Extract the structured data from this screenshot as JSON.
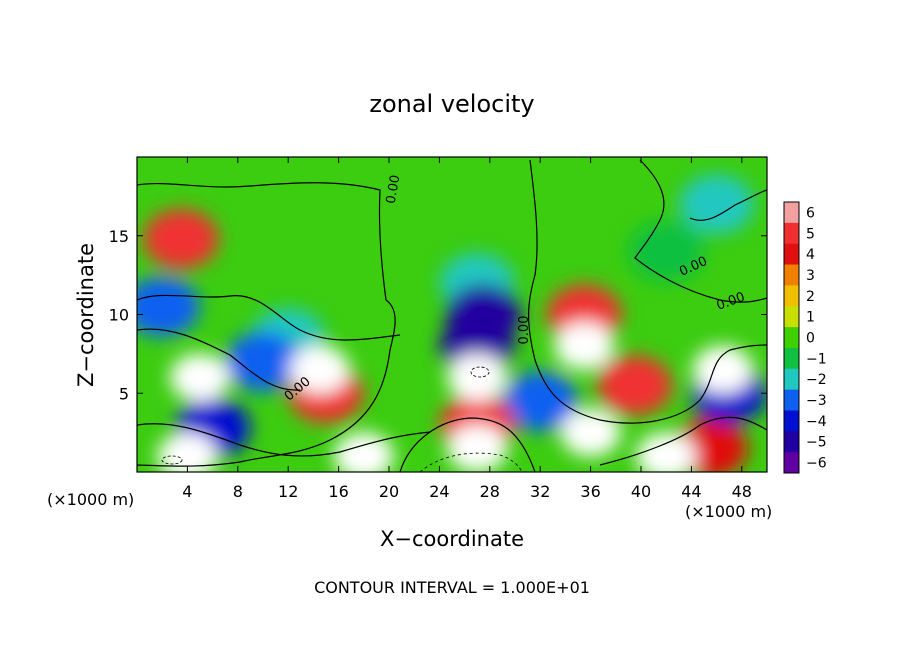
{
  "chart_data": {
    "type": "heatmap",
    "title": "zonal velocity",
    "xlabel": "X−coordinate",
    "ylabel": "Z−coordinate",
    "x_unit_left": "(×1000 m)",
    "x_unit_right": "(×1000 m)",
    "xlim": [
      0,
      50
    ],
    "ylim": [
      0,
      20
    ],
    "x_ticks": [
      4,
      8,
      12,
      16,
      20,
      24,
      28,
      32,
      36,
      40,
      44,
      48
    ],
    "y_ticks": [
      5,
      10,
      15
    ],
    "colorbar": {
      "levels": [
        6,
        5,
        4,
        3,
        2,
        1,
        0,
        -1,
        -2,
        -3,
        -4,
        -5,
        -6
      ],
      "labels": [
        "6",
        "5",
        "4",
        "3",
        "2",
        "1",
        "0",
        "−1",
        "−2",
        "−3",
        "−4",
        "−5",
        "−6"
      ],
      "colors": [
        "#f2a0a0",
        "#f03030",
        "#e01010",
        "#f08000",
        "#f0c000",
        "#c8e000",
        "#40d000",
        "#10c040",
        "#20c8c0",
        "#1060f0",
        "#0010d0",
        "#2000a0",
        "#6000a0"
      ]
    },
    "contour_labels": [
      "0.00",
      "0.00",
      "0.00",
      "0.00",
      "0.00"
    ],
    "annotation": "CONTOUR INTERVAL = 1.000E+01",
    "field": [
      {
        "x": 3.5,
        "z": 14.8,
        "v": 5
      },
      {
        "x": 5,
        "z": 6,
        "v": 7
      },
      {
        "x": 15,
        "z": 5,
        "v": 5
      },
      {
        "x": 14.5,
        "z": 6.5,
        "v": 7
      },
      {
        "x": 27,
        "z": 6,
        "v": 7
      },
      {
        "x": 27,
        "z": 1.5,
        "v": 7
      },
      {
        "x": 27,
        "z": 3,
        "v": 5
      },
      {
        "x": 27,
        "z": 8,
        "v": -5
      },
      {
        "x": 27.5,
        "z": 10,
        "v": -5
      },
      {
        "x": 27,
        "z": 12,
        "v": -2
      },
      {
        "x": 35.5,
        "z": 8,
        "v": 7
      },
      {
        "x": 35.5,
        "z": 10,
        "v": 5
      },
      {
        "x": 39.5,
        "z": 5.5,
        "v": 5
      },
      {
        "x": 36,
        "z": 2.5,
        "v": 7
      },
      {
        "x": 4,
        "z": 1,
        "v": 7
      },
      {
        "x": 6,
        "z": 2.8,
        "v": -4
      },
      {
        "x": 18,
        "z": 1,
        "v": 7
      },
      {
        "x": 46.5,
        "z": 6.5,
        "v": 7
      },
      {
        "x": 45.5,
        "z": 1.5,
        "v": 4
      },
      {
        "x": 47,
        "z": 5,
        "v": -4
      },
      {
        "x": 42,
        "z": 1,
        "v": 7
      },
      {
        "x": 2,
        "z": 10.5,
        "v": -3
      },
      {
        "x": 10,
        "z": 7,
        "v": -3
      },
      {
        "x": 12,
        "z": 8.5,
        "v": -2
      },
      {
        "x": 46,
        "z": 17,
        "v": -2
      },
      {
        "x": 42,
        "z": 14,
        "v": -1
      },
      {
        "x": 32,
        "z": 4.5,
        "v": -3
      }
    ]
  }
}
